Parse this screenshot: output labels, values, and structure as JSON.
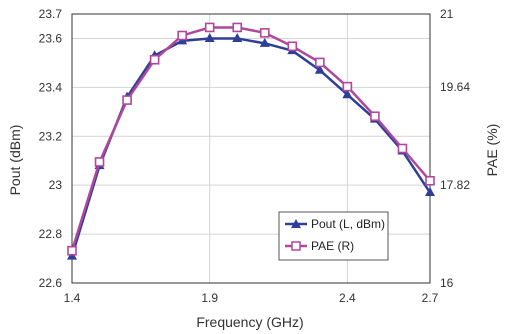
{
  "chart_data": {
    "type": "line",
    "xlabel": "Frequency (GHz)",
    "ylabel_left": "Pout (dBm)",
    "ylabel_right": "PAE (%)",
    "xlim": [
      1.4,
      2.7
    ],
    "ylim_left": [
      22.6,
      23.7
    ],
    "ylim_right": [
      16,
      21
    ],
    "x_ticks": [
      "1.4",
      "1.9",
      "2.4",
      "2.7"
    ],
    "y_left_ticks": [
      "22.6",
      "22.8",
      "23",
      "23.2",
      "23.4",
      "23.6",
      "23.7"
    ],
    "y_right_ticks": [
      "16",
      "17.82",
      "19.64",
      "21"
    ],
    "grid": true,
    "legend_position": "bottom-right",
    "colors": {
      "pout": "#2e3f9a",
      "pae": "#b0479c",
      "grid": "#d4d4d4",
      "axis": "#333333"
    },
    "x": [
      1.4,
      1.5,
      1.6,
      1.7,
      1.8,
      1.9,
      2.0,
      2.1,
      2.2,
      2.3,
      2.4,
      2.5,
      2.6,
      2.7
    ],
    "series": [
      {
        "name": "Pout (L, dBm)",
        "axis": "left",
        "marker": "triangle",
        "values": [
          22.71,
          23.08,
          23.36,
          23.53,
          23.59,
          23.6,
          23.6,
          23.58,
          23.55,
          23.47,
          23.37,
          23.27,
          23.14,
          22.97
        ]
      },
      {
        "name": "PAE (R)",
        "axis": "right",
        "marker": "square",
        "values": [
          16.6,
          18.25,
          19.4,
          20.15,
          20.6,
          20.75,
          20.75,
          20.65,
          20.4,
          20.1,
          19.65,
          19.1,
          18.5,
          17.9
        ]
      }
    ]
  }
}
